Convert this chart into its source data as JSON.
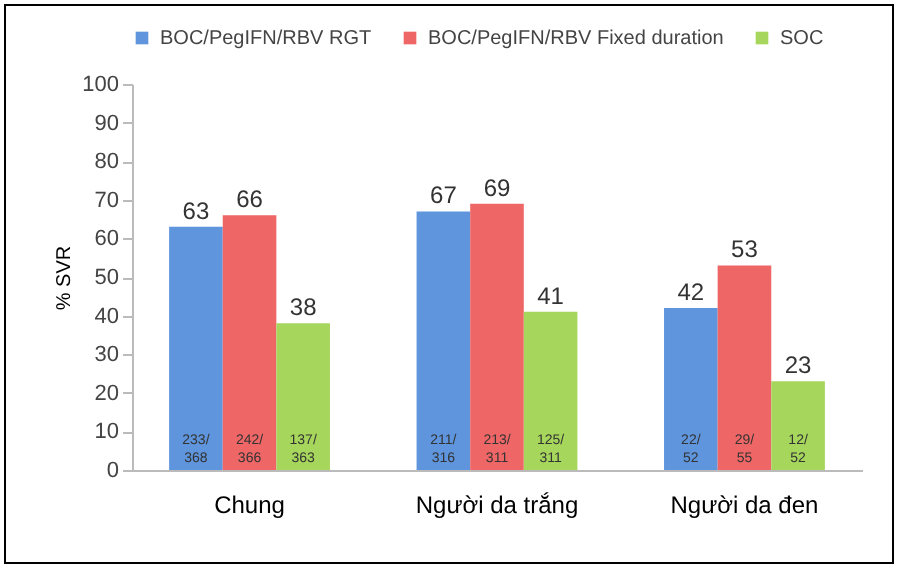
{
  "chart_data": {
    "type": "bar",
    "ylabel": "% SVR",
    "categories": [
      "Chung",
      "Người da trắng",
      "Người da đen"
    ],
    "series": [
      {
        "name": "BOC/PegIFN/RBV RGT",
        "color": "#5f95dc",
        "values": [
          63,
          67,
          42
        ]
      },
      {
        "name": "BOC/PegIFN/RBV Fixed duration",
        "color": "#ee6666",
        "values": [
          66,
          69,
          53
        ]
      },
      {
        "name": "SOC",
        "color": "#a6d65c",
        "values": [
          38,
          41,
          23
        ]
      }
    ],
    "ylim": [
      0,
      100
    ],
    "yticks": [
      0,
      10,
      20,
      30,
      40,
      50,
      60,
      70,
      80,
      90,
      100
    ],
    "data_labels": true,
    "legend": "top",
    "grid": false,
    "annotations": [
      "233/368",
      "242/366",
      "137/363",
      "211/316",
      "213/311",
      "125/311",
      "22/52",
      "29/55",
      "12/52"
    ]
  }
}
